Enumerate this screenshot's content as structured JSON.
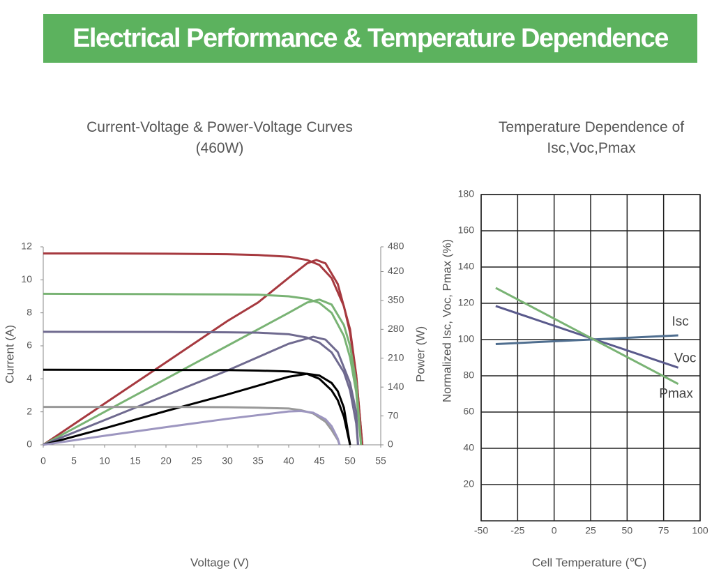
{
  "header": {
    "title": "Electrical Performance & Temperature Dependence"
  },
  "chart_data": [
    {
      "type": "line",
      "title": "Current-Voltage & Power-Voltage Curves (460W)",
      "x_label": "Voltage (V)",
      "y_label": "Current (A)",
      "y2_label": "Power (W)",
      "xlim": [
        0,
        55
      ],
      "xticks": [
        0,
        5,
        10,
        15,
        20,
        25,
        30,
        35,
        40,
        45,
        50,
        55
      ],
      "ylim": [
        0,
        12
      ],
      "yticks": [
        0,
        2,
        4,
        6,
        8,
        10,
        12
      ],
      "y2lim": [
        0,
        480
      ],
      "y2ticks": [
        0,
        70,
        140,
        210,
        280,
        350,
        420,
        480
      ],
      "grid": false,
      "series": [
        {
          "color": "#a6393f",
          "x": [
            0,
            10,
            20,
            30,
            35,
            40,
            43,
            45,
            47,
            49,
            50,
            51,
            52
          ],
          "values": [
            11.6,
            11.6,
            11.58,
            11.55,
            11.5,
            11.4,
            11.2,
            10.9,
            10.1,
            8.4,
            6.8,
            4.2,
            0
          ]
        },
        {
          "color": "#a6393f",
          "axis": "y2",
          "x": [
            0,
            10,
            20,
            30,
            35,
            40,
            43,
            44.5,
            46,
            48,
            50,
            51,
            52
          ],
          "values": [
            0,
            100,
            200,
            300,
            345,
            405,
            440,
            448,
            440,
            390,
            280,
            170,
            0
          ]
        },
        {
          "color": "#79b374",
          "x": [
            0,
            20,
            30,
            35,
            40,
            43,
            45,
            47,
            49,
            50,
            51,
            51.8
          ],
          "values": [
            9.15,
            9.13,
            9.12,
            9.1,
            9.0,
            8.85,
            8.6,
            8.0,
            6.6,
            5.3,
            3.2,
            0
          ]
        },
        {
          "color": "#79b374",
          "axis": "y2",
          "x": [
            0,
            10,
            20,
            30,
            40,
            43,
            45,
            47,
            49,
            50,
            51,
            51.8
          ],
          "values": [
            0,
            80,
            160,
            240,
            320,
            345,
            352,
            340,
            290,
            240,
            150,
            0
          ]
        },
        {
          "color": "#6f6a8f",
          "x": [
            0,
            20,
            30,
            35,
            40,
            43,
            45,
            47,
            49,
            50,
            51,
            51.3
          ],
          "values": [
            6.85,
            6.84,
            6.82,
            6.8,
            6.7,
            6.5,
            6.2,
            5.6,
            4.4,
            3.3,
            1.3,
            0
          ]
        },
        {
          "color": "#6f6a8f",
          "axis": "y2",
          "x": [
            0,
            10,
            20,
            30,
            40,
            44,
            46,
            48,
            50,
            51,
            51.3
          ],
          "values": [
            0,
            60,
            120,
            180,
            245,
            262,
            255,
            225,
            150,
            80,
            0
          ]
        },
        {
          "color": "#000000",
          "x": [
            0,
            20,
            30,
            35,
            40,
            43,
            45,
            47,
            48,
            49,
            50
          ],
          "values": [
            4.55,
            4.54,
            4.53,
            4.5,
            4.45,
            4.3,
            4.0,
            3.3,
            2.7,
            1.7,
            0
          ]
        },
        {
          "color": "#000000",
          "axis": "y2",
          "x": [
            0,
            10,
            20,
            30,
            40,
            43,
            45,
            47,
            48,
            49,
            50
          ],
          "values": [
            0,
            40,
            82,
            122,
            165,
            172,
            168,
            150,
            130,
            90,
            0
          ]
        },
        {
          "color": "#999999",
          "x": [
            0,
            20,
            30,
            35,
            40,
            42,
            44,
            46,
            47,
            48,
            48.3
          ],
          "values": [
            2.3,
            2.3,
            2.28,
            2.25,
            2.2,
            2.1,
            1.9,
            1.4,
            0.9,
            0.3,
            0
          ]
        },
        {
          "color": "#9d96c0",
          "axis": "y2",
          "x": [
            0,
            10,
            20,
            30,
            40,
            42,
            44,
            46,
            47,
            48,
            48.3
          ],
          "values": [
            0,
            22,
            43,
            63,
            81,
            82,
            78,
            62,
            45,
            15,
            0
          ]
        }
      ]
    },
    {
      "type": "line",
      "title": "Temperature Dependence of Isc,Voc,Pmax",
      "x_label": "Cell Temperature (℃)",
      "y_label": "Normalized Isc, Voc, Pmax (%)",
      "xlim": [
        -50,
        100
      ],
      "xticks": [
        -50,
        -25,
        0,
        25,
        50,
        75,
        100
      ],
      "ylim": [
        0,
        180
      ],
      "yticks": [
        20,
        40,
        60,
        80,
        100,
        120,
        140,
        160,
        180
      ],
      "grid": true,
      "series": [
        {
          "name": "Isc",
          "color": "#4f6e8f",
          "x": [
            -40,
            85
          ],
          "values": [
            97.5,
            102.3
          ]
        },
        {
          "name": "Voc",
          "color": "#5a5a8c",
          "x": [
            -40,
            85
          ],
          "values": [
            118.5,
            84.5
          ]
        },
        {
          "name": "Pmax",
          "color": "#79b374",
          "x": [
            -40,
            85
          ],
          "values": [
            128.5,
            75.5
          ]
        }
      ]
    }
  ]
}
